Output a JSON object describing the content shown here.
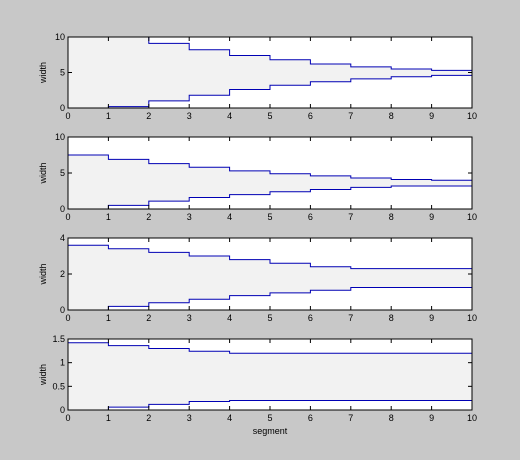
{
  "figure": {
    "background": "#c8c8c8",
    "axes_background": "#ffffff",
    "fill_color": "#f2f2f2",
    "line_color": "#0000b4"
  },
  "chart_data": [
    {
      "type": "line",
      "step": "post",
      "ylabel": "width",
      "xlabel": "",
      "xlim": [
        0,
        10
      ],
      "ylim": [
        0,
        10
      ],
      "x": [
        0,
        1,
        2,
        3,
        4,
        5,
        6,
        7,
        8,
        9,
        10
      ],
      "xticks": [
        "0",
        "1",
        "2",
        "3",
        "4",
        "5",
        "6",
        "7",
        "8",
        "9",
        "10"
      ],
      "yticks": [
        0,
        5,
        10
      ],
      "ytick_labels": [
        "0",
        "5",
        "10"
      ],
      "series": [
        {
          "values": [
            10,
            10,
            9.1,
            8.2,
            7.4,
            6.8,
            6.2,
            5.8,
            5.5,
            5.3,
            5.3
          ]
        },
        {
          "values": [
            0,
            0.2,
            1.0,
            1.8,
            2.6,
            3.2,
            3.7,
            4.1,
            4.4,
            4.6,
            4.6
          ]
        }
      ]
    },
    {
      "type": "line",
      "step": "post",
      "ylabel": "width",
      "xlabel": "",
      "xlim": [
        0,
        10
      ],
      "ylim": [
        0,
        10
      ],
      "x": [
        0,
        1,
        2,
        3,
        4,
        5,
        6,
        7,
        8,
        9,
        10
      ],
      "xticks": [
        "0",
        "1",
        "2",
        "3",
        "4",
        "5",
        "6",
        "7",
        "8",
        "9",
        "10"
      ],
      "yticks": [
        0,
        5,
        10
      ],
      "ytick_labels": [
        "0",
        "5",
        "10"
      ],
      "series": [
        {
          "values": [
            7.5,
            6.9,
            6.3,
            5.8,
            5.3,
            4.9,
            4.6,
            4.3,
            4.1,
            4.0,
            4.0
          ]
        },
        {
          "values": [
            0,
            0.5,
            1.1,
            1.6,
            2.0,
            2.4,
            2.7,
            3.0,
            3.2,
            3.2,
            3.2
          ]
        }
      ]
    },
    {
      "type": "line",
      "step": "post",
      "ylabel": "width",
      "xlabel": "",
      "xlim": [
        0,
        10
      ],
      "ylim": [
        0,
        4
      ],
      "x": [
        0,
        1,
        2,
        3,
        4,
        5,
        6,
        7,
        8,
        9,
        10
      ],
      "xticks": [
        "0",
        "1",
        "2",
        "3",
        "4",
        "5",
        "6",
        "7",
        "8",
        "9",
        "10"
      ],
      "yticks": [
        0,
        2,
        4
      ],
      "ytick_labels": [
        "0",
        "2",
        "4"
      ],
      "series": [
        {
          "values": [
            3.6,
            3.4,
            3.2,
            3.0,
            2.8,
            2.6,
            2.4,
            2.3,
            2.3,
            2.3,
            2.3
          ]
        },
        {
          "values": [
            0,
            0.2,
            0.4,
            0.6,
            0.8,
            0.95,
            1.1,
            1.25,
            1.25,
            1.25,
            1.25
          ]
        }
      ]
    },
    {
      "type": "line",
      "step": "post",
      "ylabel": "width",
      "xlabel": "segment",
      "xlim": [
        0,
        10
      ],
      "ylim": [
        0,
        1.5
      ],
      "x": [
        0,
        1,
        2,
        3,
        4,
        5,
        6,
        7,
        8,
        9,
        10
      ],
      "xticks": [
        "0",
        "1",
        "2",
        "3",
        "4",
        "5",
        "6",
        "7",
        "8",
        "9",
        "10"
      ],
      "yticks": [
        0,
        0.5,
        1,
        1.5
      ],
      "ytick_labels": [
        "0",
        "0.5",
        "1",
        "1.5"
      ],
      "series": [
        {
          "values": [
            1.42,
            1.36,
            1.3,
            1.24,
            1.2,
            1.2,
            1.2,
            1.2,
            1.2,
            1.2,
            1.2
          ]
        },
        {
          "values": [
            0,
            0.06,
            0.12,
            0.18,
            0.2,
            0.2,
            0.2,
            0.2,
            0.2,
            0.2,
            0.2
          ]
        }
      ]
    }
  ]
}
